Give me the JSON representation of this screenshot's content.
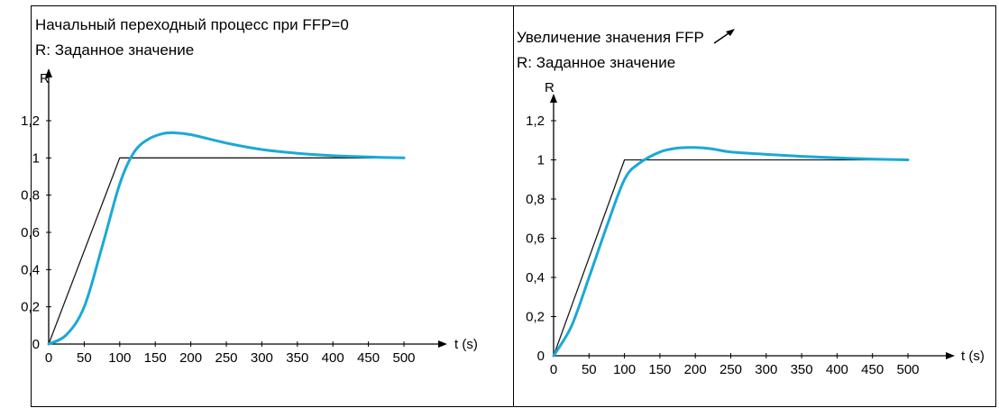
{
  "colors": {
    "reference": "#1a1a1a",
    "response": "#1aa9d6",
    "axis": "#000000"
  },
  "chart_data": [
    {
      "type": "line",
      "title": "Начальный переходный процесс при FFP=0",
      "subtitle": "R: Заданное значение",
      "ylabel": "R",
      "xlabel": "t (s)",
      "xlim": [
        0,
        500
      ],
      "ylim": [
        0,
        1.2
      ],
      "x_ticks": [
        "0",
        "50",
        "100",
        "150",
        "200",
        "250",
        "300",
        "350",
        "400",
        "450",
        "500"
      ],
      "y_ticks": [
        "0",
        "0,2",
        "0,4",
        "0,6",
        "0,8",
        "1",
        "1,2"
      ],
      "grid": false,
      "series": [
        {
          "style": "black thin line",
          "points": [
            [
              0,
              0
            ],
            [
              100,
              1.0
            ],
            [
              500,
              1.0
            ]
          ]
        },
        {
          "style": "cyan thick curve",
          "points": [
            [
              0,
              0
            ],
            [
              25,
              0.05
            ],
            [
              50,
              0.2
            ],
            [
              75,
              0.52
            ],
            [
              100,
              0.86
            ],
            [
              120,
              1.03
            ],
            [
              140,
              1.1
            ],
            [
              160,
              1.13
            ],
            [
              175,
              1.135
            ],
            [
              200,
              1.125
            ],
            [
              250,
              1.08
            ],
            [
              300,
              1.045
            ],
            [
              350,
              1.025
            ],
            [
              400,
              1.012
            ],
            [
              450,
              1.005
            ],
            [
              500,
              1.0
            ]
          ]
        }
      ]
    },
    {
      "type": "line",
      "title": "Увеличение значения FFP",
      "subtitle": "R: Заданное значение",
      "ylabel": "R",
      "xlabel": "t (s)",
      "xlim": [
        0,
        500
      ],
      "ylim": [
        0,
        1.2
      ],
      "x_ticks": [
        "0",
        "50",
        "100",
        "150",
        "200",
        "250",
        "300",
        "350",
        "400",
        "450",
        "500"
      ],
      "y_ticks": [
        "0",
        "0,2",
        "0,4",
        "0,6",
        "0,8",
        "1",
        "1,2"
      ],
      "grid": false,
      "series": [
        {
          "style": "black thin line",
          "points": [
            [
              0,
              0
            ],
            [
              100,
              1.0
            ],
            [
              500,
              1.0
            ]
          ]
        },
        {
          "style": "cyan thick curve",
          "points": [
            [
              0,
              0
            ],
            [
              25,
              0.15
            ],
            [
              50,
              0.4
            ],
            [
              75,
              0.66
            ],
            [
              100,
              0.9
            ],
            [
              120,
              0.98
            ],
            [
              150,
              1.04
            ],
            [
              175,
              1.06
            ],
            [
              200,
              1.063
            ],
            [
              225,
              1.055
            ],
            [
              250,
              1.04
            ],
            [
              300,
              1.028
            ],
            [
              350,
              1.018
            ],
            [
              400,
              1.01
            ],
            [
              450,
              1.004
            ],
            [
              500,
              1.0
            ]
          ]
        }
      ]
    }
  ]
}
